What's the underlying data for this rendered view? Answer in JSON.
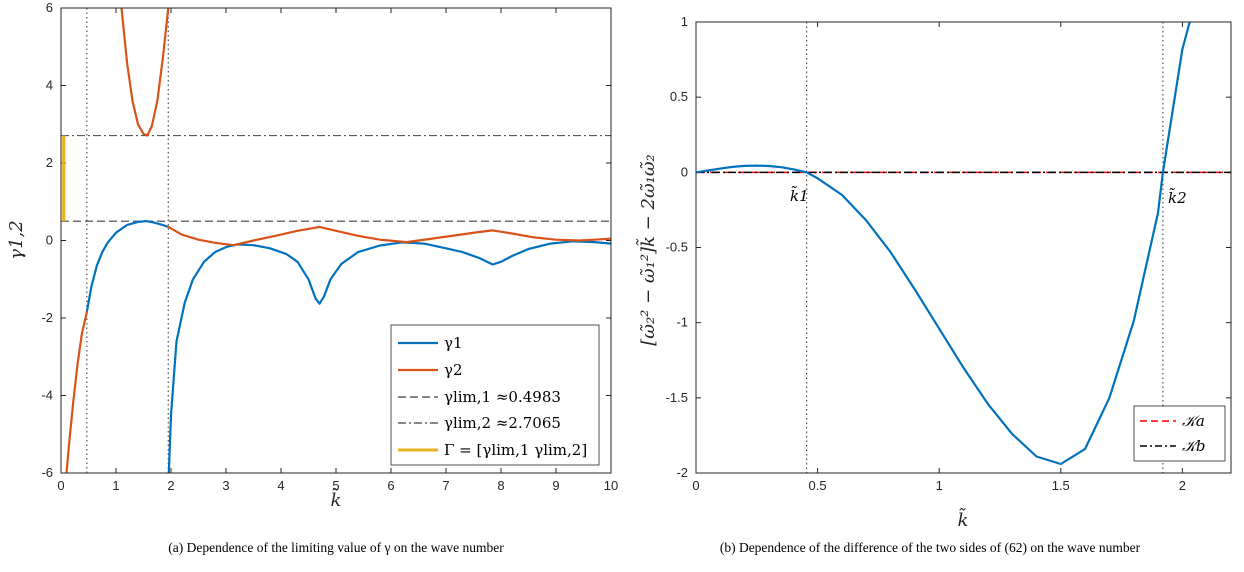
{
  "chart_data": [
    {
      "panel": "a",
      "type": "line",
      "caption": "(a) Dependence of the limiting value of γ on the wave number",
      "xlabel": "k̃",
      "ylabel": "γ1,2",
      "xlim": [
        0,
        10
      ],
      "ylim": [
        -6,
        6
      ],
      "xticks": [
        "0",
        "1",
        "2",
        "3",
        "4",
        "5",
        "6",
        "7",
        "8",
        "9",
        "10"
      ],
      "yticks": [
        "-6",
        "-4",
        "-2",
        "0",
        "2",
        "4",
        "6"
      ],
      "grid": false,
      "legend_position": "bottom-right",
      "legend": [
        "γ1",
        "γ2",
        "γlim,1 ≈0.4983",
        "γlim,2 ≈2.7065",
        "Γ = [γlim,1 γlim,2]"
      ],
      "vlines": [
        0.47,
        1.95
      ],
      "hlines": [
        {
          "name": "γlim,1 ≈0.4983",
          "y": 0.4983,
          "style": "dashed",
          "color": "#404040"
        },
        {
          "name": "γlim,2 ≈2.7065",
          "y": 2.7065,
          "style": "dashdot",
          "color": "#404040"
        }
      ],
      "interval": {
        "name": "Γ = [γlim,1 γlim,2]",
        "x": 0.05,
        "y": [
          0.4983,
          2.7065
        ],
        "color": "#EDB120"
      },
      "series": [
        {
          "name": "γ1",
          "color": "#0072BD",
          "segments": [
            [
              [
                0.47,
                -1.85
              ],
              [
                0.55,
                -1.2
              ],
              [
                0.65,
                -0.65
              ],
              [
                0.75,
                -0.3
              ],
              [
                0.85,
                -0.05
              ],
              [
                1.0,
                0.2
              ],
              [
                1.2,
                0.4
              ],
              [
                1.4,
                0.48
              ],
              [
                1.55,
                0.5
              ],
              [
                1.7,
                0.46
              ],
              [
                1.85,
                0.4
              ],
              [
                1.95,
                0.35
              ]
            ],
            [
              [
                1.96,
                -6.0
              ],
              [
                2.0,
                -4.5
              ],
              [
                2.1,
                -2.6
              ],
              [
                2.25,
                -1.6
              ],
              [
                2.4,
                -1.0
              ],
              [
                2.6,
                -0.55
              ],
              [
                2.8,
                -0.3
              ],
              [
                3.0,
                -0.17
              ],
              [
                3.2,
                -0.1
              ],
              [
                3.5,
                -0.12
              ],
              [
                3.8,
                -0.2
              ],
              [
                4.1,
                -0.35
              ],
              [
                4.3,
                -0.55
              ],
              [
                4.5,
                -1.0
              ],
              [
                4.63,
                -1.5
              ],
              [
                4.7,
                -1.63
              ],
              [
                4.78,
                -1.45
              ],
              [
                4.9,
                -1.0
              ],
              [
                5.1,
                -0.6
              ],
              [
                5.4,
                -0.3
              ],
              [
                5.8,
                -0.13
              ],
              [
                6.2,
                -0.05
              ],
              [
                6.6,
                -0.08
              ],
              [
                7.0,
                -0.2
              ],
              [
                7.3,
                -0.3
              ],
              [
                7.6,
                -0.45
              ],
              [
                7.85,
                -0.62
              ],
              [
                8.0,
                -0.55
              ],
              [
                8.2,
                -0.4
              ],
              [
                8.5,
                -0.22
              ],
              [
                8.9,
                -0.08
              ],
              [
                9.3,
                -0.02
              ],
              [
                9.7,
                -0.04
              ],
              [
                10.0,
                -0.08
              ]
            ]
          ]
        },
        {
          "name": "γ2",
          "color": "#D95319",
          "segments": [
            [
              [
                0.1,
                -6.0
              ],
              [
                0.15,
                -5.2
              ],
              [
                0.22,
                -4.2
              ],
              [
                0.3,
                -3.2
              ],
              [
                0.38,
                -2.4
              ],
              [
                0.47,
                -1.85
              ]
            ],
            [
              [
                1.1,
                6.0
              ],
              [
                1.2,
                4.6
              ],
              [
                1.3,
                3.6
              ],
              [
                1.4,
                3.0
              ],
              [
                1.5,
                2.75
              ],
              [
                1.57,
                2.71
              ],
              [
                1.65,
                2.95
              ],
              [
                1.75,
                3.6
              ],
              [
                1.85,
                4.7
              ],
              [
                1.95,
                6.0
              ]
            ],
            [
              [
                1.95,
                0.35
              ],
              [
                2.2,
                0.15
              ],
              [
                2.5,
                0.02
              ],
              [
                2.8,
                -0.06
              ],
              [
                3.14,
                -0.12
              ],
              [
                3.5,
                0.0
              ],
              [
                3.9,
                0.12
              ],
              [
                4.3,
                0.25
              ],
              [
                4.7,
                0.35
              ],
              [
                5.0,
                0.25
              ],
              [
                5.4,
                0.12
              ],
              [
                5.8,
                0.02
              ],
              [
                6.28,
                -0.04
              ],
              [
                6.7,
                0.04
              ],
              [
                7.2,
                0.14
              ],
              [
                7.6,
                0.22
              ],
              [
                7.85,
                0.26
              ],
              [
                8.2,
                0.18
              ],
              [
                8.6,
                0.08
              ],
              [
                9.0,
                0.02
              ],
              [
                9.42,
                0.0
              ],
              [
                9.7,
                0.02
              ],
              [
                10.0,
                0.05
              ]
            ]
          ]
        }
      ]
    },
    {
      "panel": "b",
      "type": "line",
      "caption": "(b) Dependence of the difference of the two sides of (62) on the wave number",
      "xlabel": "k̃",
      "ylabel": "[ω̃₂² − ω̃₁²]k̃ − 2ω̃₁ω̃₂",
      "xlim": [
        0,
        2.2
      ],
      "ylim": [
        -2,
        1
      ],
      "xticks": [
        "0",
        "0.5",
        "1",
        "1.5",
        "2"
      ],
      "yticks": [
        "-2",
        "-1.5",
        "-1",
        "-0.5",
        "0",
        "0.5",
        "1"
      ],
      "grid": false,
      "legend_position": "bottom-right",
      "legend": [
        "𝒦a",
        "𝒦b"
      ],
      "vlines": [
        0.455,
        1.92
      ],
      "hlines": [
        {
          "name": "𝒦a",
          "y": 0,
          "style": "dashed",
          "color": "#FF0000"
        },
        {
          "name": "𝒦b",
          "y": 0,
          "style": "dashdot",
          "color": "#000000"
        }
      ],
      "annotations": [
        {
          "label": "k̃1",
          "x": 0.455,
          "y": 0
        },
        {
          "label": "k̃2",
          "x": 1.92,
          "y": 0
        }
      ],
      "series": [
        {
          "name": "curve",
          "color": "#0072BD",
          "x": [
            0,
            0.05,
            0.1,
            0.15,
            0.2,
            0.25,
            0.3,
            0.35,
            0.4,
            0.455,
            0.5,
            0.6,
            0.7,
            0.8,
            0.9,
            1.0,
            1.1,
            1.2,
            1.3,
            1.4,
            1.5,
            1.6,
            1.7,
            1.8,
            1.9,
            1.92,
            2.0,
            2.03
          ],
          "y": [
            0,
            0.012,
            0.025,
            0.036,
            0.043,
            0.045,
            0.042,
            0.034,
            0.02,
            0,
            -0.04,
            -0.15,
            -0.32,
            -0.53,
            -0.78,
            -1.04,
            -1.3,
            -1.54,
            -1.74,
            -1.89,
            -1.94,
            -1.84,
            -1.5,
            -0.99,
            -0.27,
            0,
            0.82,
            1.0
          ]
        }
      ]
    }
  ]
}
